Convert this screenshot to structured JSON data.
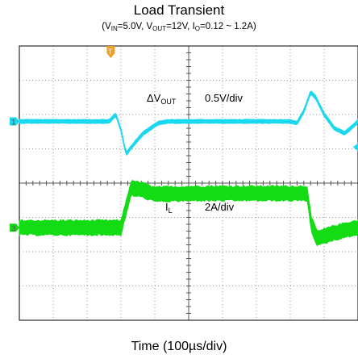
{
  "title": "Load Transient",
  "subtitle": {
    "p1": "(V",
    "s1": "IN",
    "p2": "=5.0V, V",
    "s2": "OUT",
    "p3": "=12V, I",
    "s3": "O",
    "p4": "=0.12 ~ 1.2A)"
  },
  "xlabel": "Time (100µs/div)",
  "colors": {
    "ch1": "#1ad8ee",
    "ch2": "#14dc14",
    "trigger": "#f0a020",
    "grid": "#9a9a9a",
    "border": "#000000"
  },
  "chart_data": {
    "type": "line",
    "title": "Load Transient",
    "subtitle": "(VIN=5.0V, VOUT=12V, IO=0.12 ~ 1.2A)",
    "xlabel": "Time (100µs/div)",
    "x_unit": "µs",
    "x_divisions": 10,
    "x_range": [
      0,
      1000
    ],
    "y_divisions": 8,
    "grid": true,
    "trigger_marker": "T",
    "channels": [
      {
        "id": "1",
        "label_main": "ΔV",
        "label_sub": "OUT",
        "scale": "0.5V/div",
        "ref_div": 2.2,
        "noise_div": 0.13,
        "color_key": "ch1",
        "points_us": [
          [
            0,
            0
          ],
          [
            265,
            0
          ],
          [
            285,
            0.2
          ],
          [
            300,
            -0.25
          ],
          [
            315,
            -0.95
          ],
          [
            335,
            -0.7
          ],
          [
            365,
            -0.35
          ],
          [
            410,
            -0.05
          ],
          [
            440,
            0
          ],
          [
            800,
            0
          ],
          [
            820,
            -0.05
          ],
          [
            840,
            0.3
          ],
          [
            860,
            0.85
          ],
          [
            875,
            0.7
          ],
          [
            900,
            0.2
          ],
          [
            930,
            -0.2
          ],
          [
            960,
            -0.35
          ],
          [
            990,
            -0.1
          ],
          [
            1000,
            0
          ]
        ]
      },
      {
        "id": "3",
        "label_main": "I",
        "label_sub": "L",
        "scale": "2A/div",
        "ref_div": 5.3,
        "noise_div": 0.48,
        "color_key": "ch2",
        "points_us": [
          [
            0,
            0
          ],
          [
            268,
            0
          ],
          [
            300,
            0
          ],
          [
            330,
            1.15
          ],
          [
            355,
            1.12
          ],
          [
            400,
            0.97
          ],
          [
            520,
            1.0
          ],
          [
            850,
            1.0
          ],
          [
            862,
            0.1
          ],
          [
            880,
            -0.32
          ],
          [
            930,
            -0.15
          ],
          [
            980,
            -0.03
          ],
          [
            1000,
            0
          ]
        ]
      }
    ]
  }
}
